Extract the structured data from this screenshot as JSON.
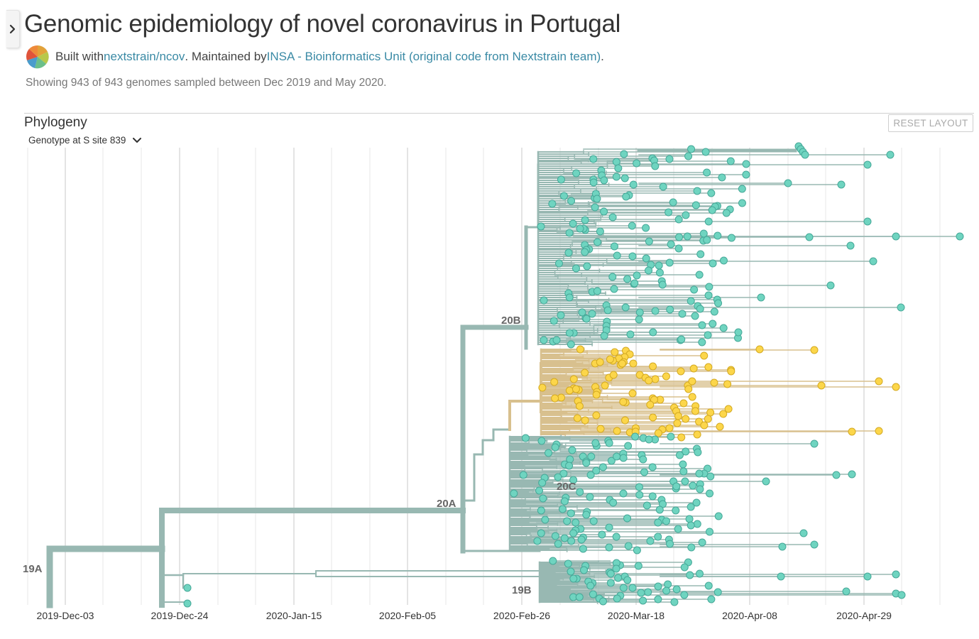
{
  "header": {
    "title": "Genomic epidemiology of novel coronavirus in Portugal",
    "built_with_prefix": "Built with ",
    "built_with_link": "nextstrain/ncov",
    "maintained_prefix": ". Maintained by ",
    "maintainer_link": "INSA - Bioinformatics Unit (original code from Nextstrain team)",
    "maintained_suffix": ".",
    "summary": "Showing 943 of 943 genomes sampled between Dec 2019 and May 2020."
  },
  "panel": {
    "title": "Phylogeny",
    "color_by": "Genotype at S site 839",
    "reset_label": "RESET LAYOUT"
  },
  "tree": {
    "x_axis_ticks": [
      "2019-Dec-03",
      "2019-Dec-24",
      "2020-Jan-15",
      "2020-Feb-05",
      "2020-Feb-26",
      "2020-Mar-18",
      "2020-Apr-08",
      "2020-Apr-29"
    ],
    "clade_labels": [
      "19A",
      "19B",
      "20A",
      "20B",
      "20C"
    ],
    "tip_count": 943,
    "colors": {
      "branch_default": "#98b8b2",
      "branch_variant": "#d8c08e",
      "tip_default": "#6fd4c0",
      "tip_default_stroke": "#46a898",
      "tip_variant": "#fcd64a",
      "tip_variant_stroke": "#d4aa22",
      "grid": "#e4e4e4",
      "link": "#3a8aa5"
    }
  }
}
